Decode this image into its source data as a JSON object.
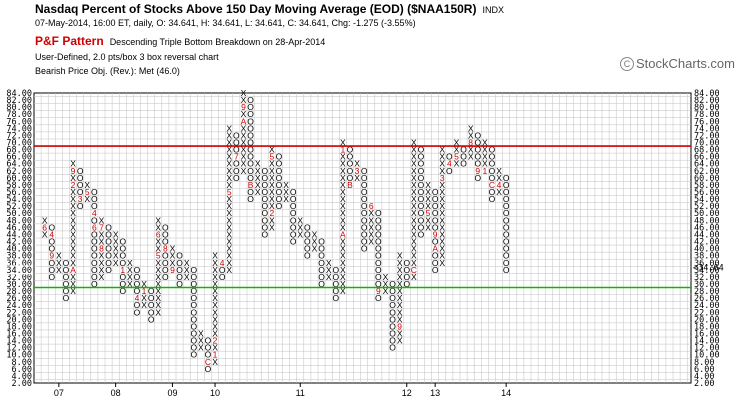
{
  "header": {
    "title": "Nasdaq Percent of Stocks Above 150 Day Moving Average (EOD) ($NAA150R)",
    "exchange": "INDX",
    "quote": "07-May-2014, 16:00 ET, daily, O: 34.641, H: 34.641, L: 34.641, C: 34.641, Chg: -1.275 (-3.55%)",
    "pf_label": "P&F Pattern",
    "pattern_text": "Descending Triple Bottom Breakdown on 28-Apr-2014",
    "info_line1": "User-Defined, 2.0 pts/box 3 box reversal chart",
    "info_line2": "Bearish Price Obj. (Rev.): Met (46.0)"
  },
  "brand": {
    "text": "StockCharts.com",
    "icon": "copyright-icon"
  },
  "colors": {
    "upper_line": "#cc0000",
    "lower_line": "#00bb00",
    "month_mark": "#cc0000",
    "grid": "#c0c0c0",
    "current_price": "#cc0000"
  },
  "chart_data": {
    "type": "point-and-figure",
    "box_size": 2,
    "reversal": 3,
    "y_range": [
      2,
      84
    ],
    "y_ticks": [
      "84.00",
      "82.00",
      "80.00",
      "78.00",
      "76.00",
      "74.00",
      "72.00",
      "70.00",
      "68.00",
      "66.00",
      "64.00",
      "62.00",
      "60.00",
      "58.00",
      "56.00",
      "54.00",
      "52.00",
      "50.00",
      "48.00",
      "46.00",
      "44.00",
      "42.00",
      "40.00",
      "38.00",
      "36.00",
      "34.00",
      "32.00",
      "30.00",
      "28.00",
      "26.00",
      "24.00",
      "22.00",
      "20.00",
      "18.00",
      "16.00",
      "14.00",
      "12.00",
      "10.00",
      "8.00",
      "6.00",
      "4.00",
      "2.00"
    ],
    "x_labels": [
      "07",
      "08",
      "09",
      "10",
      "11",
      "12",
      "13",
      "14"
    ],
    "x_label_columns": [
      2,
      10,
      18,
      24,
      36,
      51,
      55,
      65
    ],
    "upper_line_value": 69,
    "lower_line_value": 29,
    "current_price": 34.64,
    "current_price_label": "34.64",
    "left_price_label": "34.00",
    "columns": [
      {
        "type": "X",
        "low": 44,
        "high": 48
      },
      {
        "type": "O",
        "low": 32,
        "high": 46
      },
      {
        "type": "X",
        "low": 34,
        "high": 38
      },
      {
        "type": "O",
        "low": 26,
        "high": 36
      },
      {
        "type": "X",
        "low": 28,
        "high": 64
      },
      {
        "type": "O",
        "low": 52,
        "high": 62
      },
      {
        "type": "X",
        "low": 54,
        "high": 58
      },
      {
        "type": "O",
        "low": 30,
        "high": 56
      },
      {
        "type": "X",
        "low": 32,
        "high": 48
      },
      {
        "type": "O",
        "low": 34,
        "high": 46
      },
      {
        "type": "X",
        "low": 36,
        "high": 44
      },
      {
        "type": "O",
        "low": 28,
        "high": 42
      },
      {
        "type": "X",
        "low": 30,
        "high": 36
      },
      {
        "type": "O",
        "low": 22,
        "high": 34
      },
      {
        "type": "X",
        "low": 24,
        "high": 30
      },
      {
        "type": "O",
        "low": 20,
        "high": 28
      },
      {
        "type": "X",
        "low": 22,
        "high": 48
      },
      {
        "type": "O",
        "low": 32,
        "high": 46
      },
      {
        "type": "X",
        "low": 34,
        "high": 40
      },
      {
        "type": "O",
        "low": 30,
        "high": 38
      },
      {
        "type": "X",
        "low": 32,
        "high": 36
      },
      {
        "type": "O",
        "low": 10,
        "high": 34
      },
      {
        "type": "X",
        "low": 12,
        "high": 16
      },
      {
        "type": "O",
        "low": 6,
        "high": 14
      },
      {
        "type": "X",
        "low": 8,
        "high": 38
      },
      {
        "type": "O",
        "low": 32,
        "high": 36
      },
      {
        "type": "X",
        "low": 34,
        "high": 74
      },
      {
        "type": "O",
        "low": 60,
        "high": 72
      },
      {
        "type": "X",
        "low": 62,
        "high": 84
      },
      {
        "type": "O",
        "low": 54,
        "high": 82
      },
      {
        "type": "X",
        "low": 56,
        "high": 64
      },
      {
        "type": "O",
        "low": 44,
        "high": 62
      },
      {
        "type": "X",
        "low": 46,
        "high": 68
      },
      {
        "type": "O",
        "low": 52,
        "high": 66
      },
      {
        "type": "X",
        "low": 54,
        "high": 58
      },
      {
        "type": "O",
        "low": 42,
        "high": 56
      },
      {
        "type": "X",
        "low": 44,
        "high": 48
      },
      {
        "type": "O",
        "low": 38,
        "high": 46
      },
      {
        "type": "X",
        "low": 40,
        "high": 44
      },
      {
        "type": "O",
        "low": 30,
        "high": 42
      },
      {
        "type": "X",
        "low": 32,
        "high": 36
      },
      {
        "type": "O",
        "low": 26,
        "high": 34
      },
      {
        "type": "X",
        "low": 28,
        "high": 70
      },
      {
        "type": "O",
        "low": 58,
        "high": 68
      },
      {
        "type": "X",
        "low": 60,
        "high": 64
      },
      {
        "type": "O",
        "low": 40,
        "high": 62
      },
      {
        "type": "X",
        "low": 42,
        "high": 52
      },
      {
        "type": "O",
        "low": 26,
        "high": 50
      },
      {
        "type": "X",
        "low": 28,
        "high": 32
      },
      {
        "type": "O",
        "low": 12,
        "high": 30
      },
      {
        "type": "X",
        "low": 14,
        "high": 38
      },
      {
        "type": "O",
        "low": 30,
        "high": 36
      },
      {
        "type": "X",
        "low": 32,
        "high": 70
      },
      {
        "type": "O",
        "low": 44,
        "high": 68
      },
      {
        "type": "X",
        "low": 46,
        "high": 58
      },
      {
        "type": "O",
        "low": 34,
        "high": 56
      },
      {
        "type": "X",
        "low": 36,
        "high": 68
      },
      {
        "type": "O",
        "low": 62,
        "high": 66
      },
      {
        "type": "X",
        "low": 64,
        "high": 70
      },
      {
        "type": "O",
        "low": 64,
        "high": 68
      },
      {
        "type": "X",
        "low": 66,
        "high": 74
      },
      {
        "type": "O",
        "low": 60,
        "high": 72
      },
      {
        "type": "X",
        "low": 62,
        "high": 70
      },
      {
        "type": "O",
        "low": 54,
        "high": 68
      },
      {
        "type": "X",
        "low": 56,
        "high": 62
      },
      {
        "type": "O",
        "low": 34,
        "high": 60
      }
    ],
    "month_marks": [
      {
        "col": 0,
        "value": 46,
        "label": "6"
      },
      {
        "col": 1,
        "value": 38,
        "label": "9"
      },
      {
        "col": 1,
        "value": 44,
        "label": "4"
      },
      {
        "col": 4,
        "value": 34,
        "label": "A"
      },
      {
        "col": 4,
        "value": 58,
        "label": "2"
      },
      {
        "col": 4,
        "value": 62,
        "label": "9"
      },
      {
        "col": 5,
        "value": 54,
        "label": "3"
      },
      {
        "col": 5,
        "value": 50,
        "label": "B"
      },
      {
        "col": 6,
        "value": 56,
        "label": "5"
      },
      {
        "col": 7,
        "value": 46,
        "label": "6"
      },
      {
        "col": 7,
        "value": 50,
        "label": "4"
      },
      {
        "col": 8,
        "value": 40,
        "label": "8"
      },
      {
        "col": 8,
        "value": 46,
        "label": "7"
      },
      {
        "col": 11,
        "value": 34,
        "label": "1"
      },
      {
        "col": 13,
        "value": 26,
        "label": "4"
      },
      {
        "col": 14,
        "value": 28,
        "label": "1"
      },
      {
        "col": 16,
        "value": 38,
        "label": "5"
      },
      {
        "col": 16,
        "value": 44,
        "label": "6"
      },
      {
        "col": 17,
        "value": 40,
        "label": "8"
      },
      {
        "col": 18,
        "value": 34,
        "label": "9"
      },
      {
        "col": 23,
        "value": 26,
        "label": "4"
      },
      {
        "col": 23,
        "value": 8,
        "label": "C"
      },
      {
        "col": 24,
        "value": 10,
        "label": "1"
      },
      {
        "col": 24,
        "value": 14,
        "label": "2"
      },
      {
        "col": 25,
        "value": 36,
        "label": "4"
      },
      {
        "col": 26,
        "value": 56,
        "label": "5"
      },
      {
        "col": 27,
        "value": 66,
        "label": "7"
      },
      {
        "col": 28,
        "value": 76,
        "label": "A"
      },
      {
        "col": 28,
        "value": 80,
        "label": "9"
      },
      {
        "col": 29,
        "value": 58,
        "label": "B"
      },
      {
        "col": 31,
        "value": 66,
        "label": "4"
      },
      {
        "col": 32,
        "value": 50,
        "label": "2"
      },
      {
        "col": 32,
        "value": 66,
        "label": "5"
      },
      {
        "col": 37,
        "value": 28,
        "label": "7"
      },
      {
        "col": 42,
        "value": 44,
        "label": "A"
      },
      {
        "col": 42,
        "value": 68,
        "label": "1"
      },
      {
        "col": 43,
        "value": 58,
        "label": "B"
      },
      {
        "col": 44,
        "value": 62,
        "label": "3"
      },
      {
        "col": 46,
        "value": 52,
        "label": "6"
      },
      {
        "col": 47,
        "value": 28,
        "label": "9"
      },
      {
        "col": 48,
        "value": 36,
        "label": "8"
      },
      {
        "col": 50,
        "value": 18,
        "label": "9"
      },
      {
        "col": 52,
        "value": 34,
        "label": "C"
      },
      {
        "col": 54,
        "value": 50,
        "label": "5"
      },
      {
        "col": 54,
        "value": 66,
        "label": "3"
      },
      {
        "col": 55,
        "value": 40,
        "label": "A"
      },
      {
        "col": 55,
        "value": 44,
        "label": "9"
      },
      {
        "col": 56,
        "value": 60,
        "label": "3"
      },
      {
        "col": 57,
        "value": 64,
        "label": "4"
      },
      {
        "col": 58,
        "value": 66,
        "label": "5"
      },
      {
        "col": 60,
        "value": 70,
        "label": "8"
      },
      {
        "col": 61,
        "value": 62,
        "label": "9"
      },
      {
        "col": 62,
        "value": 62,
        "label": "1"
      },
      {
        "col": 63,
        "value": 58,
        "label": "C"
      },
      {
        "col": 64,
        "value": 58,
        "label": "4"
      }
    ]
  }
}
